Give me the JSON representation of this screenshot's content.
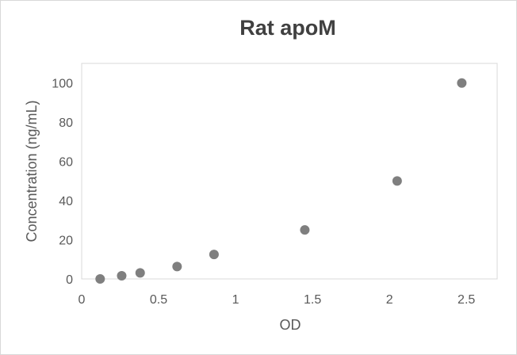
{
  "chart_data": {
    "type": "scatter",
    "title": "Rat apoM",
    "xlabel": "OD",
    "ylabel": "Concentration (ng/mL)",
    "xlim": [
      0,
      2.7
    ],
    "ylim": [
      0,
      110
    ],
    "xticks": [
      "0",
      "0.5",
      "1",
      "1.5",
      "2",
      "2.5"
    ],
    "xtick_values": [
      0,
      0.5,
      1,
      1.5,
      2,
      2.5
    ],
    "yticks": [
      "0",
      "20",
      "40",
      "60",
      "80",
      "100"
    ],
    "ytick_values": [
      0,
      20,
      40,
      60,
      80,
      100
    ],
    "grid": false,
    "legend": "none",
    "marker_color": "#7f7f7f",
    "plot_border_color": "#d9d9d9",
    "points": [
      {
        "x": 0.12,
        "y": 0
      },
      {
        "x": 0.26,
        "y": 1.6
      },
      {
        "x": 0.38,
        "y": 3.1
      },
      {
        "x": 0.62,
        "y": 6.3
      },
      {
        "x": 0.86,
        "y": 12.5
      },
      {
        "x": 1.45,
        "y": 25
      },
      {
        "x": 2.05,
        "y": 50
      },
      {
        "x": 2.47,
        "y": 100
      }
    ]
  }
}
